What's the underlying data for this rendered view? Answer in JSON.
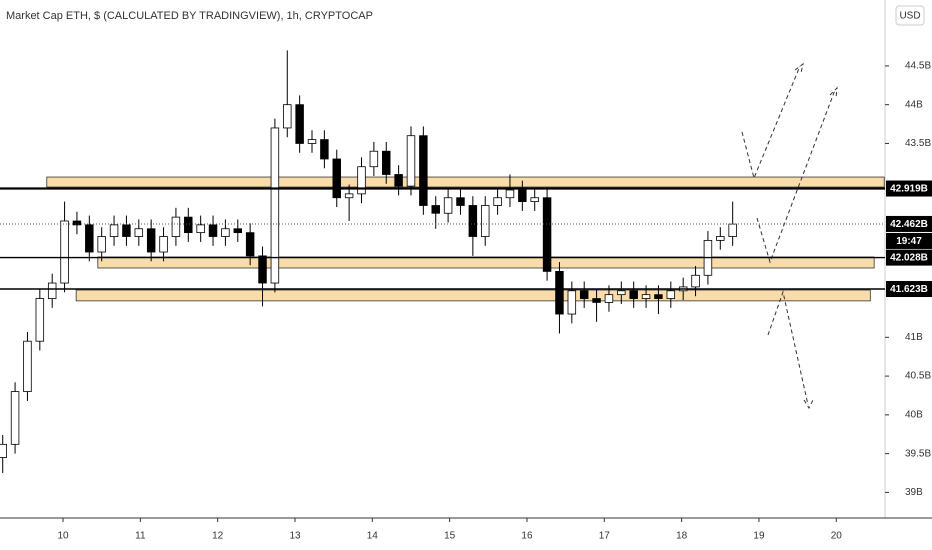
{
  "chart_data": {
    "type": "candlestick",
    "title": "Market Cap ETH, $ (CALCULATED BY TRADINGVIEW), 1h, CRYPTOCAP",
    "currency_button": "USD",
    "countdown": "19:47",
    "xlim": [
      9.185,
      20.63
    ],
    "ylim": [
      38.67,
      45.35
    ],
    "xticks": [
      10,
      11,
      12,
      13,
      14,
      15,
      16,
      17,
      18,
      19,
      20
    ],
    "yticks": [
      {
        "value": 44.5,
        "label": "44.5B"
      },
      {
        "value": 44,
        "label": "44B"
      },
      {
        "value": 43.5,
        "label": "43.5B"
      },
      {
        "value": 41,
        "label": "41B"
      },
      {
        "value": 40.5,
        "label": "40.5B"
      },
      {
        "value": 40,
        "label": "40B"
      },
      {
        "value": 39.5,
        "label": "39.5B"
      },
      {
        "value": 39,
        "label": "39B"
      }
    ],
    "x": [
      9.22,
      9.38,
      9.54,
      9.7,
      9.86,
      10.02,
      10.18,
      10.34,
      10.5,
      10.66,
      10.82,
      10.98,
      11.14,
      11.3,
      11.46,
      11.62,
      11.78,
      11.94,
      12.1,
      12.26,
      12.42,
      12.58,
      12.74,
      12.9,
      13.06,
      13.22,
      13.38,
      13.54,
      13.7,
      13.86,
      14.02,
      14.18,
      14.34,
      14.5,
      14.66,
      14.82,
      14.98,
      15.14,
      15.3,
      15.46,
      15.62,
      15.78,
      15.94,
      16.1,
      16.26,
      16.42,
      16.58,
      16.74,
      16.9,
      17.06,
      17.22,
      17.38,
      17.54,
      17.7,
      17.86,
      18.02,
      18.18,
      18.34,
      18.5,
      18.66
    ],
    "open": [
      39.45,
      39.62,
      40.3,
      40.95,
      41.5,
      41.7,
      42.5,
      42.45,
      42.1,
      42.3,
      42.45,
      42.3,
      42.4,
      42.1,
      42.3,
      42.55,
      42.35,
      42.45,
      42.3,
      42.4,
      42.35,
      42.05,
      41.7,
      43.7,
      44.0,
      43.5,
      43.55,
      43.3,
      42.8,
      42.85,
      43.2,
      43.4,
      43.1,
      42.95,
      43.6,
      42.7,
      42.6,
      42.8,
      42.7,
      42.3,
      42.7,
      42.8,
      42.9,
      42.75,
      42.8,
      41.85,
      41.3,
      41.6,
      41.5,
      41.45,
      41.55,
      41.6,
      41.5,
      41.55,
      41.5,
      41.6,
      41.65,
      41.8,
      42.25,
      42.3
    ],
    "high": [
      39.74,
      40.42,
      41.07,
      41.62,
      41.82,
      42.75,
      42.62,
      42.57,
      42.42,
      42.57,
      42.57,
      42.52,
      42.52,
      42.42,
      42.67,
      42.67,
      42.57,
      42.57,
      42.52,
      42.52,
      42.47,
      42.17,
      43.82,
      44.7,
      44.12,
      43.67,
      43.67,
      43.42,
      42.97,
      43.32,
      43.52,
      43.52,
      43.22,
      43.72,
      43.72,
      42.82,
      42.92,
      42.92,
      42.82,
      42.82,
      42.92,
      43.1,
      43.02,
      42.92,
      42.92,
      41.97,
      41.72,
      41.72,
      41.62,
      41.67,
      41.72,
      41.72,
      41.67,
      41.67,
      41.72,
      41.77,
      41.92,
      42.37,
      42.42,
      42.75
    ],
    "low": [
      39.25,
      39.5,
      40.18,
      40.83,
      41.38,
      41.58,
      42.33,
      41.98,
      41.98,
      42.18,
      42.18,
      42.18,
      41.98,
      41.98,
      42.18,
      42.23,
      42.23,
      42.18,
      42.18,
      42.23,
      41.93,
      41.4,
      41.58,
      43.58,
      43.38,
      43.38,
      43.18,
      42.68,
      42.5,
      42.73,
      43.08,
      42.98,
      42.83,
      42.83,
      42.58,
      42.4,
      42.48,
      42.58,
      42.05,
      42.18,
      42.58,
      42.68,
      42.63,
      42.63,
      41.73,
      41.05,
      41.18,
      41.38,
      41.2,
      41.33,
      41.43,
      41.38,
      41.38,
      41.3,
      41.38,
      41.48,
      41.53,
      41.68,
      42.13,
      42.18
    ],
    "close": [
      39.62,
      40.3,
      40.95,
      41.5,
      41.7,
      42.5,
      42.45,
      42.1,
      42.3,
      42.45,
      42.3,
      42.4,
      42.1,
      42.3,
      42.55,
      42.35,
      42.45,
      42.3,
      42.4,
      42.35,
      42.05,
      41.7,
      43.7,
      44.0,
      43.5,
      43.55,
      43.3,
      42.8,
      42.85,
      43.2,
      43.4,
      43.1,
      42.95,
      43.6,
      42.7,
      42.6,
      42.8,
      42.7,
      42.3,
      42.7,
      42.8,
      42.9,
      42.75,
      42.8,
      41.85,
      41.3,
      41.6,
      41.5,
      41.45,
      41.55,
      41.6,
      41.5,
      41.55,
      41.5,
      41.6,
      41.65,
      41.8,
      42.25,
      42.3,
      42.46
    ],
    "levels": [
      {
        "value": 42.919,
        "label": "42.919B",
        "style": "solid-thick"
      },
      {
        "value": 42.462,
        "label": "42.462B",
        "style": "dotted"
      },
      {
        "value": 42.028,
        "label": "42.028B",
        "style": "solid"
      },
      {
        "value": 41.623,
        "label": "41.623B",
        "style": "solid"
      }
    ],
    "zones": [
      {
        "top": 43.067,
        "bottom": 42.938,
        "x0": 9.79,
        "x1": 20.62
      },
      {
        "top": 42.036,
        "bottom": 41.894,
        "x0": 10.45,
        "x1": 20.49
      },
      {
        "top": 41.61,
        "bottom": 41.47,
        "x0": 10.17,
        "x1": 20.44
      }
    ],
    "zone_color": "#f9dcaa",
    "up_color": "#ffffff",
    "down_color": "#000000"
  }
}
